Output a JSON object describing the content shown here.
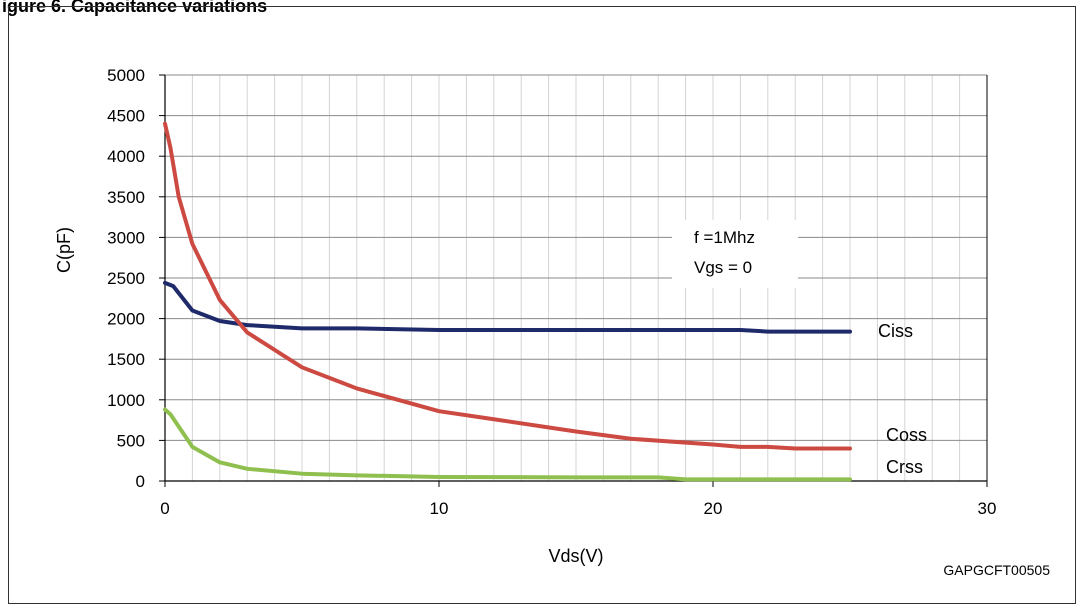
{
  "figure": {
    "heading": "igure 6. Capacitance variations",
    "code": "GAPGCFT00505"
  },
  "chart_data": {
    "type": "line",
    "title": "",
    "xlabel": "Vds(V)",
    "ylabel": "C(pF)",
    "xlim": [
      0,
      30
    ],
    "ylim": [
      0,
      5000
    ],
    "xticks": [
      0,
      10,
      20,
      30
    ],
    "yticks": [
      0,
      500,
      1000,
      1500,
      2000,
      2500,
      3000,
      3500,
      4000,
      4500,
      5000
    ],
    "grid": true,
    "annotation": [
      "f =1Mhz",
      "Vgs = 0"
    ],
    "series": [
      {
        "name": "Ciss",
        "color": "#1f2a6b",
        "x": [
          0,
          0.3,
          1,
          2,
          3,
          5,
          7,
          10,
          15,
          20,
          21,
          22,
          25
        ],
        "y": [
          2440,
          2400,
          2100,
          1970,
          1920,
          1880,
          1880,
          1860,
          1860,
          1860,
          1860,
          1840,
          1840
        ]
      },
      {
        "name": "Coss",
        "color": "#cc4a42",
        "x": [
          0,
          0.2,
          0.5,
          1,
          2,
          3,
          5,
          7,
          10,
          12,
          15,
          17,
          20,
          21,
          22,
          23,
          25
        ],
        "y": [
          4400,
          4100,
          3500,
          2920,
          2230,
          1830,
          1400,
          1140,
          860,
          760,
          610,
          520,
          450,
          420,
          420,
          400,
          400
        ]
      },
      {
        "name": "Crss",
        "color": "#8fbf4e",
        "x": [
          0,
          0.2,
          1,
          2,
          3,
          5,
          7,
          10,
          15,
          18,
          19,
          25
        ],
        "y": [
          880,
          820,
          420,
          230,
          150,
          90,
          70,
          50,
          45,
          45,
          20,
          20
        ]
      }
    ]
  }
}
